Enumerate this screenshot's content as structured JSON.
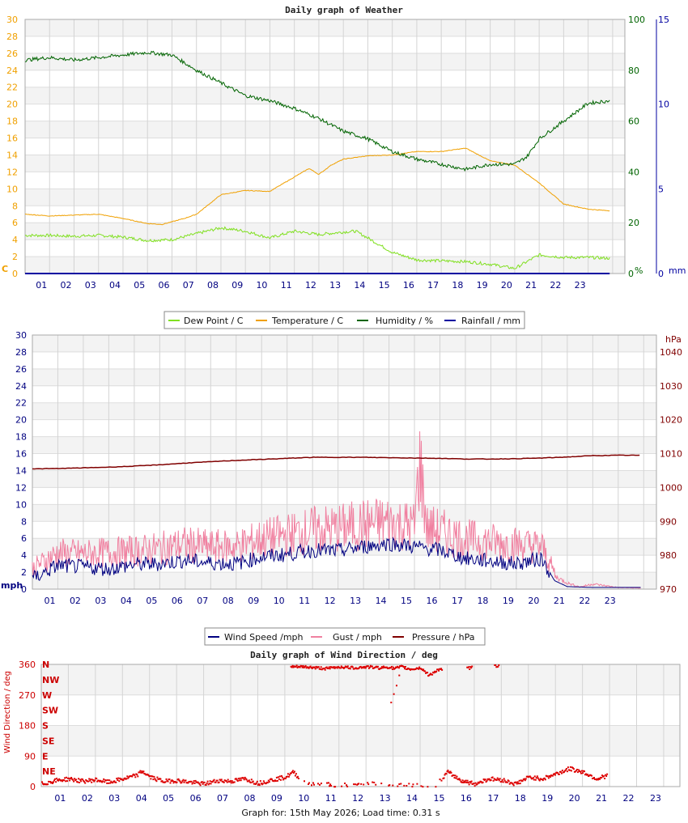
{
  "footer": "Graph for: 15th May 2026; Load time: 0.31 s",
  "chart_data": [
    {
      "type": "line",
      "title": "Daily graph of Weather",
      "x_ticks": [
        "01",
        "02",
        "03",
        "04",
        "05",
        "06",
        "07",
        "08",
        "09",
        "10",
        "11",
        "12",
        "13",
        "14",
        "15",
        "16",
        "17",
        "18",
        "19",
        "20",
        "21",
        "22",
        "23"
      ],
      "x_range": [
        0,
        24.5
      ],
      "grid": true,
      "legend_position": "bottom",
      "axes": {
        "left": {
          "unit": "C",
          "range": [
            0,
            30
          ],
          "ticks": [
            "0",
            "2",
            "4",
            "6",
            "8",
            "10",
            "12",
            "14",
            "16",
            "18",
            "20",
            "22",
            "24",
            "26",
            "28",
            "30"
          ],
          "color": "#f0a000"
        },
        "right1": {
          "unit": "%",
          "range": [
            0,
            100
          ],
          "ticks": [
            "0",
            "20",
            "40",
            "60",
            "80",
            "100"
          ],
          "color": "#006400"
        },
        "right2": {
          "unit": "mm",
          "range": [
            0,
            15
          ],
          "ticks": [
            "0",
            "5",
            "10",
            "15"
          ],
          "color": "#0000a0"
        }
      },
      "series": [
        {
          "name": "Dew Point / C",
          "axis": "left",
          "color": "#80e020",
          "x": [
            0,
            1,
            2,
            3,
            4,
            5,
            6,
            7,
            8,
            9,
            10,
            11,
            12,
            13,
            13.5,
            14,
            15,
            16,
            17,
            18,
            19,
            20,
            21,
            22,
            23,
            23.9
          ],
          "y": [
            4.5,
            4.5,
            4.4,
            4.5,
            4.3,
            3.9,
            4.0,
            4.7,
            5.4,
            5.0,
            4.2,
            5.0,
            4.6,
            4.9,
            5.0,
            4.2,
            2.5,
            1.6,
            1.5,
            1.4,
            1.1,
            0.6,
            2.2,
            1.9,
            1.9,
            1.8
          ]
        },
        {
          "name": "Temperature / C",
          "axis": "left",
          "color": "#f0a000",
          "x": [
            0,
            1,
            2,
            3,
            4,
            5,
            5.6,
            6.5,
            7,
            8,
            9,
            10,
            11,
            11.6,
            12,
            12.5,
            13,
            14,
            15,
            16,
            17,
            18,
            19,
            20,
            21,
            22,
            23,
            23.9
          ],
          "y": [
            7.0,
            6.8,
            6.9,
            7.0,
            6.5,
            5.9,
            5.8,
            6.5,
            7.0,
            9.3,
            9.8,
            9.7,
            11.4,
            12.4,
            11.7,
            12.8,
            13.5,
            13.9,
            14.0,
            14.4,
            14.4,
            14.8,
            13.3,
            12.8,
            10.7,
            8.2,
            7.6,
            7.4
          ]
        },
        {
          "name": "Humidity / %",
          "axis": "right1",
          "color": "#006400",
          "x": [
            0,
            1,
            2,
            3,
            4,
            5,
            6,
            7,
            8,
            9,
            10,
            11,
            12,
            13,
            14,
            15,
            16,
            17,
            18,
            19,
            20,
            20.5,
            21,
            22,
            23,
            23.9
          ],
          "y": [
            84,
            85,
            84,
            85,
            86,
            87,
            86,
            80,
            75,
            70,
            68,
            65,
            61,
            56,
            53,
            48,
            45,
            43,
            41,
            43,
            43,
            46,
            53,
            60,
            67,
            68
          ]
        },
        {
          "name": "Rainfall / mm",
          "axis": "right2",
          "color": "#0000a0",
          "x": [
            0,
            23.9
          ],
          "y": [
            0,
            0
          ]
        }
      ]
    },
    {
      "type": "line",
      "title": "",
      "x_ticks": [
        "01",
        "02",
        "03",
        "04",
        "05",
        "06",
        "07",
        "08",
        "09",
        "10",
        "11",
        "12",
        "13",
        "14",
        "15",
        "16",
        "17",
        "18",
        "19",
        "20",
        "21",
        "22",
        "23"
      ],
      "x_range": [
        0,
        24.5
      ],
      "grid": true,
      "legend_position": "bottom",
      "axes": {
        "left": {
          "unit": "mph",
          "range": [
            0,
            30
          ],
          "ticks": [
            "0",
            "2",
            "4",
            "6",
            "8",
            "10",
            "12",
            "14",
            "16",
            "18",
            "20",
            "22",
            "24",
            "26",
            "28",
            "30"
          ],
          "color": "#000080"
        },
        "right": {
          "unit": "hPa",
          "range": [
            970,
            1045
          ],
          "ticks": [
            "970",
            "980",
            "990",
            "1000",
            "1010",
            "1020",
            "1030",
            "1040"
          ],
          "color": "#800000"
        }
      },
      "series": [
        {
          "name": "Wind Speed /mph",
          "axis": "left",
          "color": "#000080",
          "x": [
            0,
            1,
            2,
            3,
            4,
            5,
            6,
            7,
            8,
            9,
            10,
            11,
            12,
            13,
            14,
            15,
            16,
            17,
            18,
            19,
            20,
            20.5,
            21,
            22,
            23,
            23.9
          ],
          "y": [
            1.2,
            2.8,
            2.6,
            2.4,
            2.9,
            3.0,
            3.4,
            3.1,
            3.0,
            3.8,
            4.1,
            4.6,
            4.5,
            5.0,
            5.4,
            5.0,
            4.6,
            3.6,
            3.3,
            3.0,
            3.6,
            1.0,
            0.3,
            0.2,
            0.2,
            0.2
          ]
        },
        {
          "name": "Gust / mph",
          "axis": "left",
          "color": "#f080a0",
          "x": [
            0,
            1,
            2,
            3,
            4,
            5,
            6,
            7,
            8,
            9,
            10,
            11,
            12,
            13,
            14,
            15,
            15.2,
            15.5,
            16,
            17,
            18,
            19,
            20,
            20.5,
            21,
            21.5,
            22,
            23,
            23.9
          ],
          "y": [
            3.2,
            5.5,
            5.4,
            5.6,
            5.8,
            6.2,
            6.8,
            6.4,
            6.5,
            7.6,
            8.2,
            9.0,
            9.2,
            9.8,
            10.2,
            9.5,
            19.5,
            9.2,
            8.8,
            7.6,
            7.2,
            6.8,
            6.5,
            2.5,
            1.2,
            0.4,
            1.0,
            0.3,
            0.2
          ]
        },
        {
          "name": "Pressure / hPa",
          "axis": "right",
          "color": "#800000",
          "x": [
            0,
            1,
            2,
            3,
            4,
            5,
            6,
            7,
            8,
            9,
            10,
            11,
            12,
            13,
            14,
            15,
            16,
            17,
            18,
            19,
            20,
            21,
            22,
            23,
            23.9
          ],
          "y": [
            1005.5,
            1005.6,
            1005.8,
            1006,
            1006.3,
            1006.7,
            1007.2,
            1007.6,
            1008,
            1008.3,
            1008.6,
            1008.9,
            1008.9,
            1008.9,
            1008.8,
            1008.7,
            1008.6,
            1008.4,
            1008.4,
            1008.5,
            1008.7,
            1009,
            1009.4,
            1009.5,
            1009.5
          ]
        }
      ]
    },
    {
      "type": "scatter",
      "title": "Daily graph of Wind Direction / deg",
      "x_ticks": [
        "01",
        "02",
        "03",
        "04",
        "05",
        "06",
        "07",
        "08",
        "09",
        "10",
        "11",
        "12",
        "13",
        "14",
        "15",
        "16",
        "17",
        "18",
        "19",
        "20",
        "21",
        "22",
        "23"
      ],
      "x_range": [
        0,
        24
      ],
      "ylabel": "Wind Direction / deg",
      "grid": true,
      "axes": {
        "left": {
          "range": [
            0,
            360
          ],
          "ticks": [
            "0",
            "90",
            "180",
            "270",
            "360"
          ],
          "color": "#cc0000"
        },
        "compass": [
          "N",
          "NW",
          "W",
          "SW",
          "S",
          "SE",
          "E",
          "NE"
        ]
      },
      "series": [
        {
          "name": "Wind Direction",
          "color": "#dd0000",
          "low_x": [
            0,
            0.5,
            1,
            1.5,
            2,
            2.5,
            3,
            3.5,
            3.7,
            4,
            4.5,
            5,
            5.5,
            6,
            6.5,
            7,
            7.5,
            8,
            8.5,
            9,
            9.3,
            9.6,
            10,
            10.5,
            11,
            11.5,
            12.5,
            13,
            14,
            14.5,
            15,
            15.5,
            16,
            16.5,
            17,
            17.5,
            18,
            18.5,
            19,
            19.5,
            20,
            20.5,
            20.9
          ],
          "low_y": [
            10,
            20,
            25,
            18,
            22,
            15,
            25,
            35,
            48,
            30,
            18,
            20,
            15,
            10,
            20,
            18,
            25,
            12,
            22,
            30,
            45,
            20,
            8,
            10,
            5,
            8,
            10,
            5,
            5,
            3,
            45,
            20,
            10,
            25,
            22,
            10,
            30,
            25,
            40,
            55,
            45,
            25,
            35
          ],
          "high_x": [
            9.3,
            9.7,
            10.5,
            11,
            11.5,
            12,
            12.5,
            12.8,
            13,
            13.3,
            13.6,
            14,
            14.3,
            14.6,
            15.8,
            16.8
          ],
          "high_y": [
            355,
            355,
            350,
            355,
            352,
            355,
            352,
            355,
            350,
            355,
            348,
            352,
            330,
            345,
            352,
            358
          ],
          "extra_x": [
            12.9,
            13.0,
            13.1,
            13.2
          ],
          "extra_y": [
            250,
            275,
            300,
            330
          ]
        }
      ]
    }
  ]
}
